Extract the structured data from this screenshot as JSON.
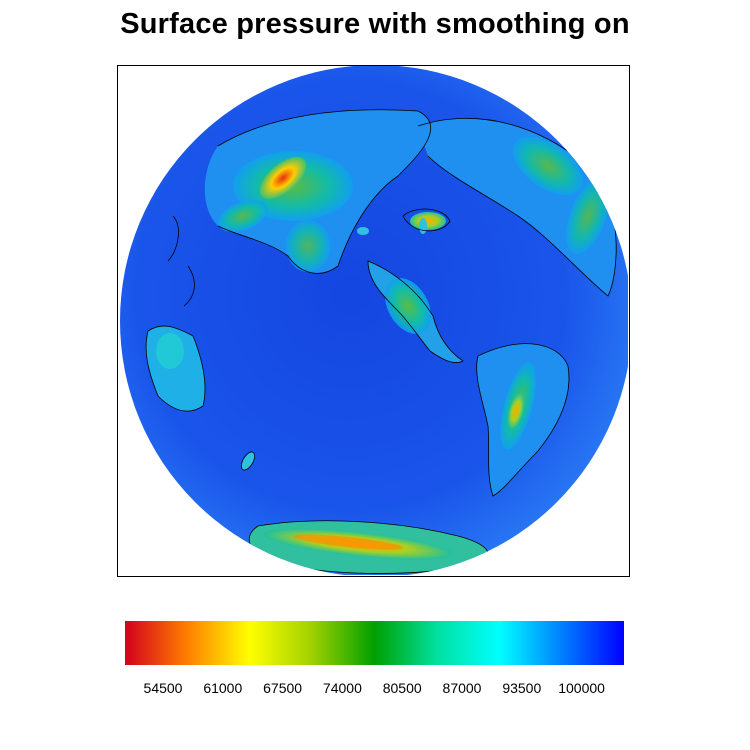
{
  "title": "Surface pressure with smoothing on",
  "colorbar": {
    "colors": [
      "#d2001e",
      "#ff7f00",
      "#ffff00",
      "#9fd000",
      "#00a000",
      "#00e0a0",
      "#00ffff",
      "#0080ff",
      "#0000ff"
    ],
    "labels": [
      "54500",
      "61000",
      "67500",
      "74000",
      "80500",
      "87000",
      "93500",
      "100000"
    ]
  },
  "map": {
    "ocean_color": "#1a55e8",
    "coast_color": "#000000"
  }
}
